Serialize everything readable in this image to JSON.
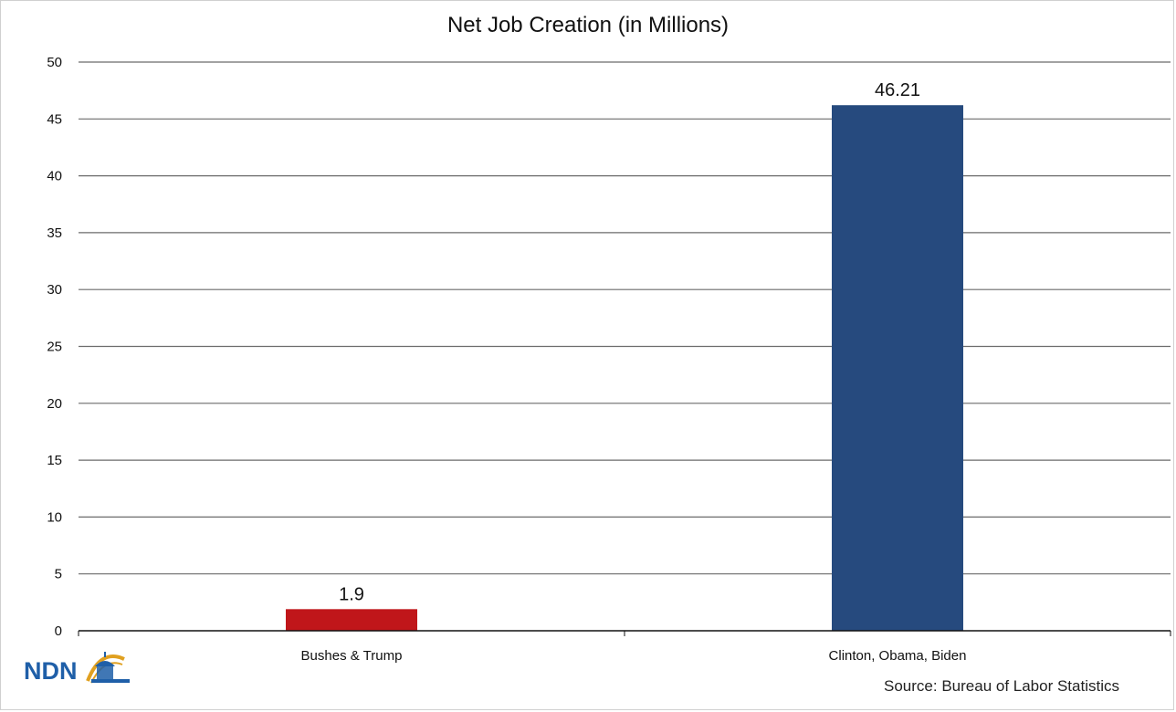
{
  "chart_data": {
    "type": "bar",
    "title": "Net Job Creation (in Millions)",
    "categories": [
      "Bushes & Trump",
      "Clinton, Obama, Biden"
    ],
    "values": [
      1.9,
      46.21
    ],
    "data_labels": [
      "1.9",
      "46.21"
    ],
    "bar_colors": [
      "#c0161a",
      "#264a7e"
    ],
    "ylim": [
      0,
      50
    ],
    "yticks": [
      0,
      5,
      10,
      15,
      20,
      25,
      30,
      35,
      40,
      45,
      50
    ],
    "grid": true,
    "legend": "none"
  },
  "logo": {
    "text": "NDN",
    "colors": [
      "#1f5fa8",
      "#e0a020"
    ]
  },
  "source": "Source: Bureau of Labor Statistics"
}
